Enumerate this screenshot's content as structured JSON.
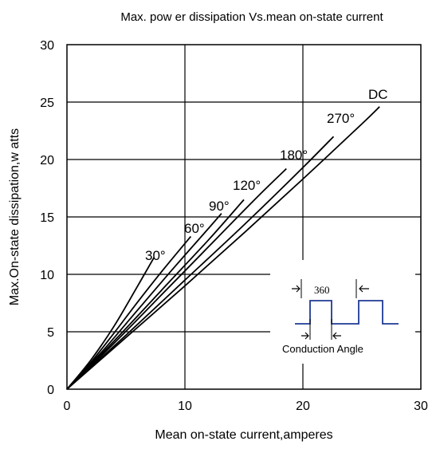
{
  "chart_data": {
    "type": "line",
    "title": "Max. pow er dissipation Vs.mean on-state current",
    "xlabel": "Mean on-state current,amperes",
    "ylabel": "Max.On-state dissipation,w atts",
    "xlim": [
      0,
      30
    ],
    "ylim": [
      0,
      30
    ],
    "xticks": [
      0,
      10,
      20,
      30
    ],
    "yticks": [
      0,
      5,
      10,
      15,
      20,
      25,
      30
    ],
    "xtick_labels": [
      "0",
      "10",
      "20",
      "30"
    ],
    "ytick_labels": [
      "0",
      "5",
      "10",
      "15",
      "20",
      "25",
      "30"
    ],
    "grid": true,
    "line_color": "#000000",
    "series": [
      {
        "name": "30°",
        "x": [
          0,
          2,
          4,
          6,
          7.4
        ],
        "y": [
          0,
          2.5,
          5.5,
          9.0,
          11.5
        ]
      },
      {
        "name": "60°",
        "x": [
          0,
          2,
          4,
          6,
          8,
          10.5
        ],
        "y": [
          0,
          2.3,
          4.9,
          7.6,
          10.2,
          13.3
        ]
      },
      {
        "name": "90°",
        "x": [
          0,
          3,
          6,
          9,
          12,
          13.1
        ],
        "y": [
          0,
          3.3,
          6.9,
          10.5,
          14.0,
          15.3
        ]
      },
      {
        "name": "120°",
        "x": [
          0,
          4,
          8,
          12,
          15.0
        ],
        "y": [
          0,
          4.2,
          8.6,
          13.0,
          16.5
        ]
      },
      {
        "name": "180°",
        "x": [
          0,
          4,
          8,
          12,
          16,
          18.6
        ],
        "y": [
          0,
          4.0,
          8.2,
          12.4,
          16.6,
          19.2
        ]
      },
      {
        "name": "270°",
        "x": [
          0,
          5,
          10,
          15,
          20,
          22.6
        ],
        "y": [
          0,
          4.7,
          9.5,
          14.3,
          19.3,
          22.0
        ]
      },
      {
        "name": "DC",
        "x": [
          0,
          5,
          10,
          15,
          20,
          25,
          26.5
        ],
        "y": [
          0,
          4.5,
          9.0,
          13.6,
          18.3,
          23.1,
          24.6
        ]
      }
    ],
    "inset": {
      "top_label": "360",
      "bottom_label": "Conduction Angle",
      "waveform_color": "#1f3a93"
    }
  }
}
